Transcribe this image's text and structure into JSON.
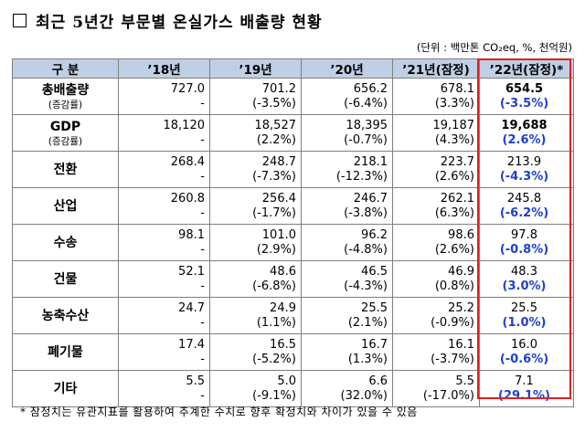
{
  "title": "최근 5년간 부문별 온실가스 배출량 현황",
  "unit": "(단위 : 백만톤 CO₂eq, %, 천억원)",
  "headers": [
    "구 분",
    "’18년",
    "’19년",
    "’20년",
    "’21년(잠정)",
    "’22년(잠정)*"
  ],
  "rows": [
    {
      "label": "총배출량",
      "sub": "(증감률)",
      "cells": [
        {
          "v": "727.0",
          "c": "-"
        },
        {
          "v": "701.2",
          "c": "(-3.5%)"
        },
        {
          "v": "656.2",
          "c": "(-6.4%)"
        },
        {
          "v": "678.1",
          "c": "(3.3%)"
        },
        {
          "v": "654.5",
          "c": "(-3.5%)"
        }
      ]
    },
    {
      "label": "GDP",
      "sub": "(증감률)",
      "cells": [
        {
          "v": "18,120",
          "c": "-"
        },
        {
          "v": "18,527",
          "c": "(2.2%)"
        },
        {
          "v": "18,395",
          "c": "(-0.7%)"
        },
        {
          "v": "19,187",
          "c": "(4.3%)"
        },
        {
          "v": "19,688",
          "c": "(2.6%)"
        }
      ]
    },
    {
      "label": "전환",
      "sub": "",
      "cells": [
        {
          "v": "268.4",
          "c": "-"
        },
        {
          "v": "248.7",
          "c": "(-7.3%)"
        },
        {
          "v": "218.1",
          "c": "(-12.3%)"
        },
        {
          "v": "223.7",
          "c": "(2.6%)"
        },
        {
          "v": "213.9",
          "c": "(-4.3%)"
        }
      ]
    },
    {
      "label": "산업",
      "sub": "",
      "cells": [
        {
          "v": "260.8",
          "c": "-"
        },
        {
          "v": "256.4",
          "c": "(-1.7%)"
        },
        {
          "v": "246.7",
          "c": "(-3.8%)"
        },
        {
          "v": "262.1",
          "c": "(6.3%)"
        },
        {
          "v": "245.8",
          "c": "(-6.2%)"
        }
      ]
    },
    {
      "label": "수송",
      "sub": "",
      "cells": [
        {
          "v": "98.1",
          "c": "-"
        },
        {
          "v": "101.0",
          "c": "(2.9%)"
        },
        {
          "v": "96.2",
          "c": "(-4.8%)"
        },
        {
          "v": "98.6",
          "c": "(2.6%)"
        },
        {
          "v": "97.8",
          "c": "(-0.8%)"
        }
      ]
    },
    {
      "label": "건물",
      "sub": "",
      "cells": [
        {
          "v": "52.1",
          "c": "-"
        },
        {
          "v": "48.6",
          "c": "(-6.8%)"
        },
        {
          "v": "46.5",
          "c": "(-4.3%)"
        },
        {
          "v": "46.9",
          "c": "(0.8%)"
        },
        {
          "v": "48.3",
          "c": "(3.0%)"
        }
      ]
    },
    {
      "label": "농축수산",
      "sub": "",
      "cells": [
        {
          "v": "24.7",
          "c": "-"
        },
        {
          "v": "24.9",
          "c": "(1.1%)"
        },
        {
          "v": "25.5",
          "c": "(2.1%)"
        },
        {
          "v": "25.2",
          "c": "(-0.9%)"
        },
        {
          "v": "25.5",
          "c": "(1.0%)"
        }
      ]
    },
    {
      "label": "폐기물",
      "sub": "",
      "cells": [
        {
          "v": "17.4",
          "c": "-"
        },
        {
          "v": "16.5",
          "c": "(-5.2%)"
        },
        {
          "v": "16.7",
          "c": "(1.3%)"
        },
        {
          "v": "16.1",
          "c": "(-3.7%)"
        },
        {
          "v": "16.0",
          "c": "(-0.6%)"
        }
      ]
    },
    {
      "label": "기타",
      "sub": "",
      "cells": [
        {
          "v": "5.5",
          "c": "-"
        },
        {
          "v": "5.0",
          "c": "(-9.1%)"
        },
        {
          "v": "6.6",
          "c": "(32.0%)"
        },
        {
          "v": "5.5",
          "c": "(-17.0%)"
        },
        {
          "v": "7.1",
          "c": "(29.1%)"
        }
      ]
    }
  ],
  "note": "* 잠정치는 유관지표를 활용하여 추계한 수치로 향후 확정치와 차이가 있을 수 있음",
  "colors": {
    "header_bg": "#bfcfe4",
    "highlight_border": "#e02020",
    "emphasis_text": "#1f3fcf"
  }
}
